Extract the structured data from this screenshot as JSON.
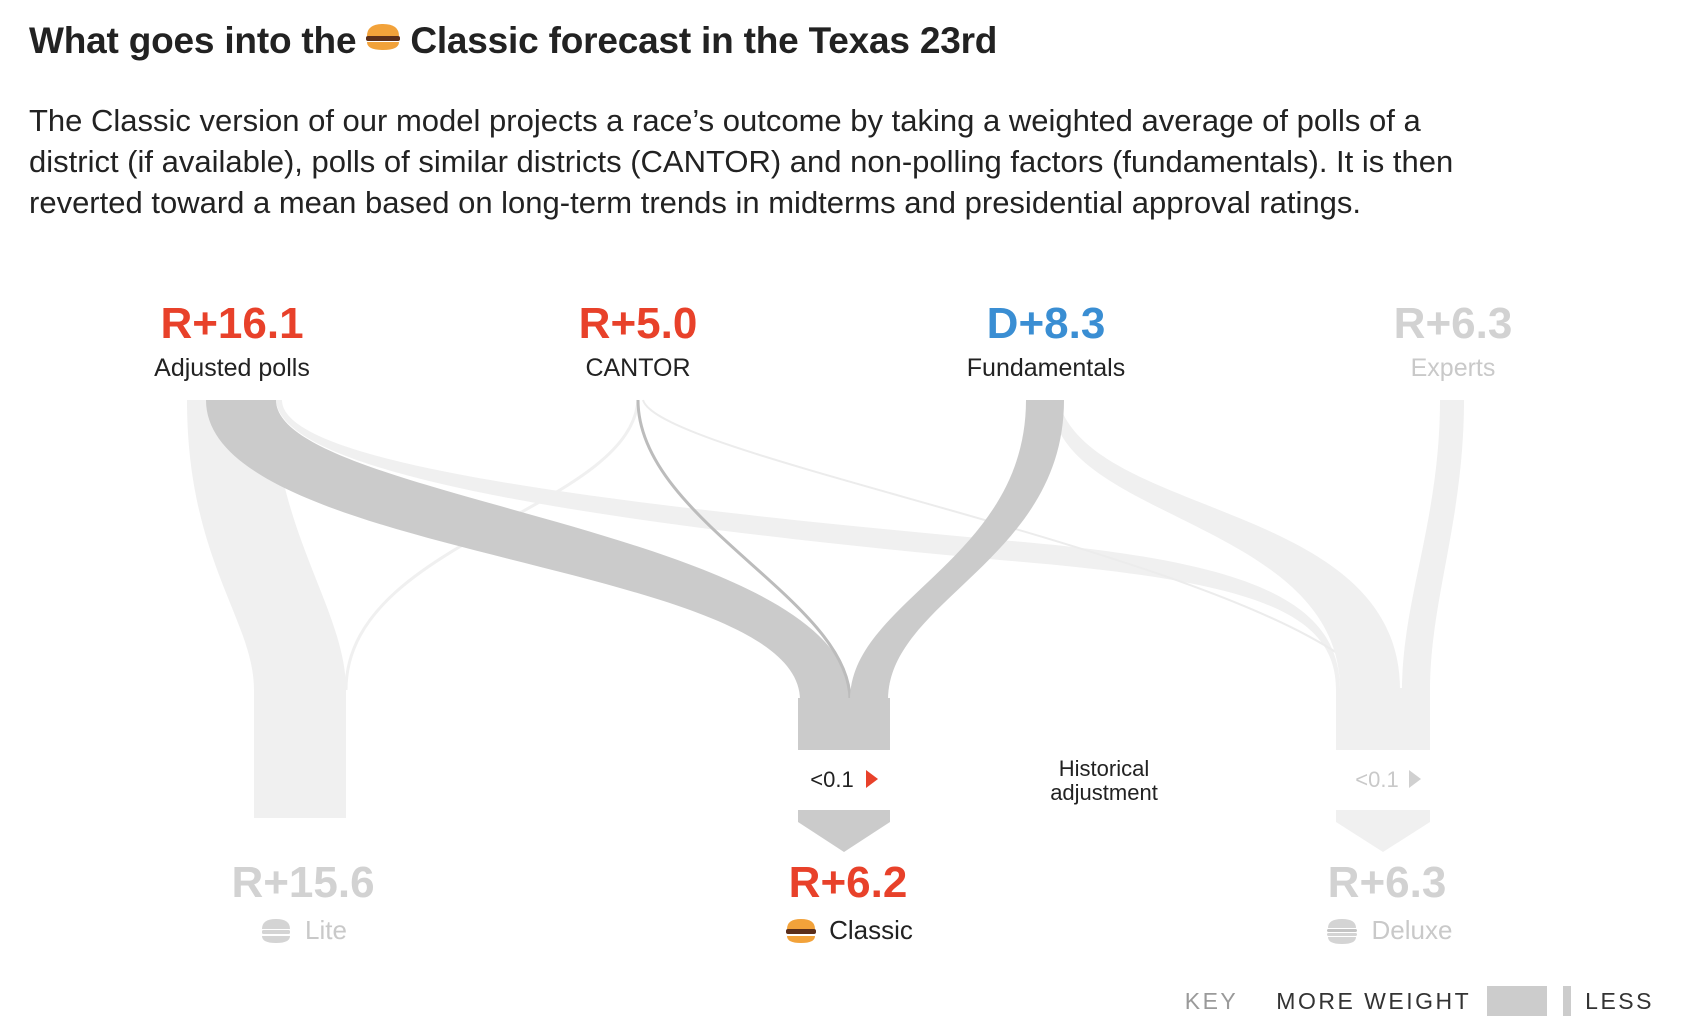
{
  "title": {
    "before": "What goes into the",
    "icon": "burger-icon",
    "after": "Classic forecast in the Texas 23rd"
  },
  "description": [
    "The Classic version of our model projects a race’s outcome by taking a weighted average of polls of a",
    "district (if available), polls of similar districts (CANTOR) and non-polling factors (fundamentals). It is then",
    "reverted toward a mean based on long-term trends in midterms and presidential approval ratings."
  ],
  "colors": {
    "republican": "#e8412a",
    "democrat": "#3a8ed3",
    "faded_text": "#c9c9c9",
    "flow_strong": "#cbcbcb",
    "flow_faint": "#f0f0f0",
    "label": "#222222"
  },
  "inputs": [
    {
      "key": "polls",
      "value": "R+16.1",
      "label": "Adjusted polls",
      "party": "R",
      "active": true
    },
    {
      "key": "cantor",
      "value": "R+5.0",
      "label": "CANTOR",
      "party": "R",
      "active": true
    },
    {
      "key": "fundamentals",
      "value": "D+8.3",
      "label": "Fundamentals",
      "party": "D",
      "active": true
    },
    {
      "key": "experts",
      "value": "R+6.3",
      "label": "Experts",
      "party": "R",
      "active": false
    }
  ],
  "historical_adjustment": {
    "label_line1": "Historical",
    "label_line2": "adjustment",
    "classic_value": "<0.1",
    "deluxe_value": "<0.1"
  },
  "outputs": [
    {
      "key": "lite",
      "value": "R+15.6",
      "label": "Lite",
      "icon": "burger-lite-icon",
      "party": "R",
      "active": false
    },
    {
      "key": "classic",
      "value": "R+6.2",
      "label": "Classic",
      "icon": "burger-icon",
      "party": "R",
      "active": true
    },
    {
      "key": "deluxe",
      "value": "R+6.3",
      "label": "Deluxe",
      "icon": "burger-deluxe-icon",
      "party": "R",
      "active": false
    }
  ],
  "key": {
    "label": "KEY",
    "more": "MORE WEIGHT",
    "less": "LESS"
  }
}
